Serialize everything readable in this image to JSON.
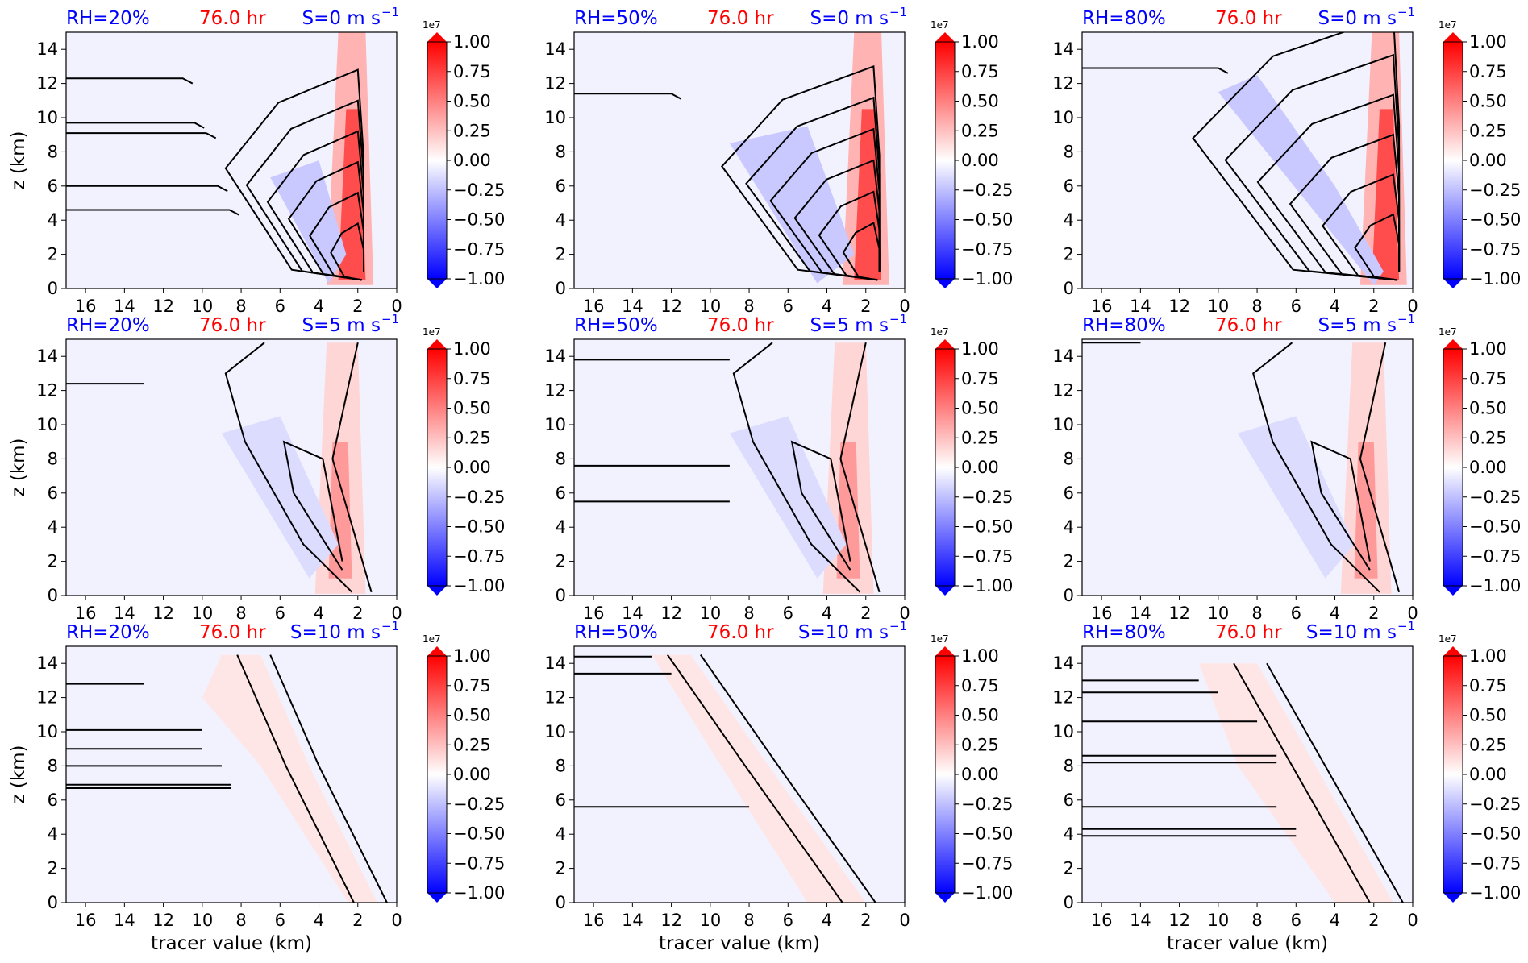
{
  "colors": {
    "rh": "#0000ff",
    "time": "#ff0000",
    "shear": "#0000ff",
    "background": "#f2f2ff",
    "positive": "#ff0000",
    "negative": "#0000ff",
    "contour": "#000000"
  },
  "colorbar": {
    "ticks": [
      "1.00",
      "0.75",
      "0.50",
      "0.25",
      "0.00",
      "−0.25",
      "−0.50",
      "−0.75",
      "−1.00"
    ],
    "exponent": "1e7",
    "range": [
      -1.0,
      1.0
    ],
    "extend": "both",
    "cmap": "bwr"
  },
  "axes": {
    "xlabel": "tracer value (km)",
    "ylabel": "z (km)",
    "xticks": [
      "16",
      "14",
      "12",
      "10",
      "8",
      "6",
      "4",
      "2",
      "0"
    ],
    "yticks": [
      "0",
      "2",
      "4",
      "6",
      "8",
      "10",
      "12",
      "14"
    ]
  },
  "chart_data": [
    {
      "type": "heatmap",
      "rh": "RH=20%",
      "time": "76.0 hr",
      "shear": "S=0 m s",
      "shear_exp": "−1",
      "xlim": [
        17,
        0
      ],
      "ylim": [
        0,
        15
      ]
    },
    {
      "type": "heatmap",
      "rh": "RH=50%",
      "time": "76.0 hr",
      "shear": "S=0 m s",
      "shear_exp": "−1",
      "xlim": [
        17,
        0
      ],
      "ylim": [
        0,
        15
      ]
    },
    {
      "type": "heatmap",
      "rh": "RH=80%",
      "time": "76.0 hr",
      "shear": "S=0 m s",
      "shear_exp": "−1",
      "xlim": [
        17,
        0
      ],
      "ylim": [
        0,
        15
      ]
    },
    {
      "type": "heatmap",
      "rh": "RH=20%",
      "time": "76.0 hr",
      "shear": "S=5 m s",
      "shear_exp": "−1",
      "xlim": [
        17,
        0
      ],
      "ylim": [
        0,
        15
      ]
    },
    {
      "type": "heatmap",
      "rh": "RH=50%",
      "time": "76.0 hr",
      "shear": "S=5 m s",
      "shear_exp": "−1",
      "xlim": [
        17,
        0
      ],
      "ylim": [
        0,
        15
      ]
    },
    {
      "type": "heatmap",
      "rh": "RH=80%",
      "time": "76.0 hr",
      "shear": "S=5 m s",
      "shear_exp": "−1",
      "xlim": [
        17,
        0
      ],
      "ylim": [
        0,
        15
      ]
    },
    {
      "type": "heatmap",
      "rh": "RH=20%",
      "time": "76.0 hr",
      "shear": "S=10 m s",
      "shear_exp": "−1",
      "xlim": [
        17,
        0
      ],
      "ylim": [
        0,
        15
      ]
    },
    {
      "type": "heatmap",
      "rh": "RH=50%",
      "time": "76.0 hr",
      "shear": "S=10 m s",
      "shear_exp": "−1",
      "xlim": [
        17,
        0
      ],
      "ylim": [
        0,
        15
      ]
    },
    {
      "type": "heatmap",
      "rh": "RH=80%",
      "time": "76.0 hr",
      "shear": "S=10 m s",
      "shear_exp": "−1",
      "xlim": [
        17,
        0
      ],
      "ylim": [
        0,
        15
      ]
    }
  ]
}
